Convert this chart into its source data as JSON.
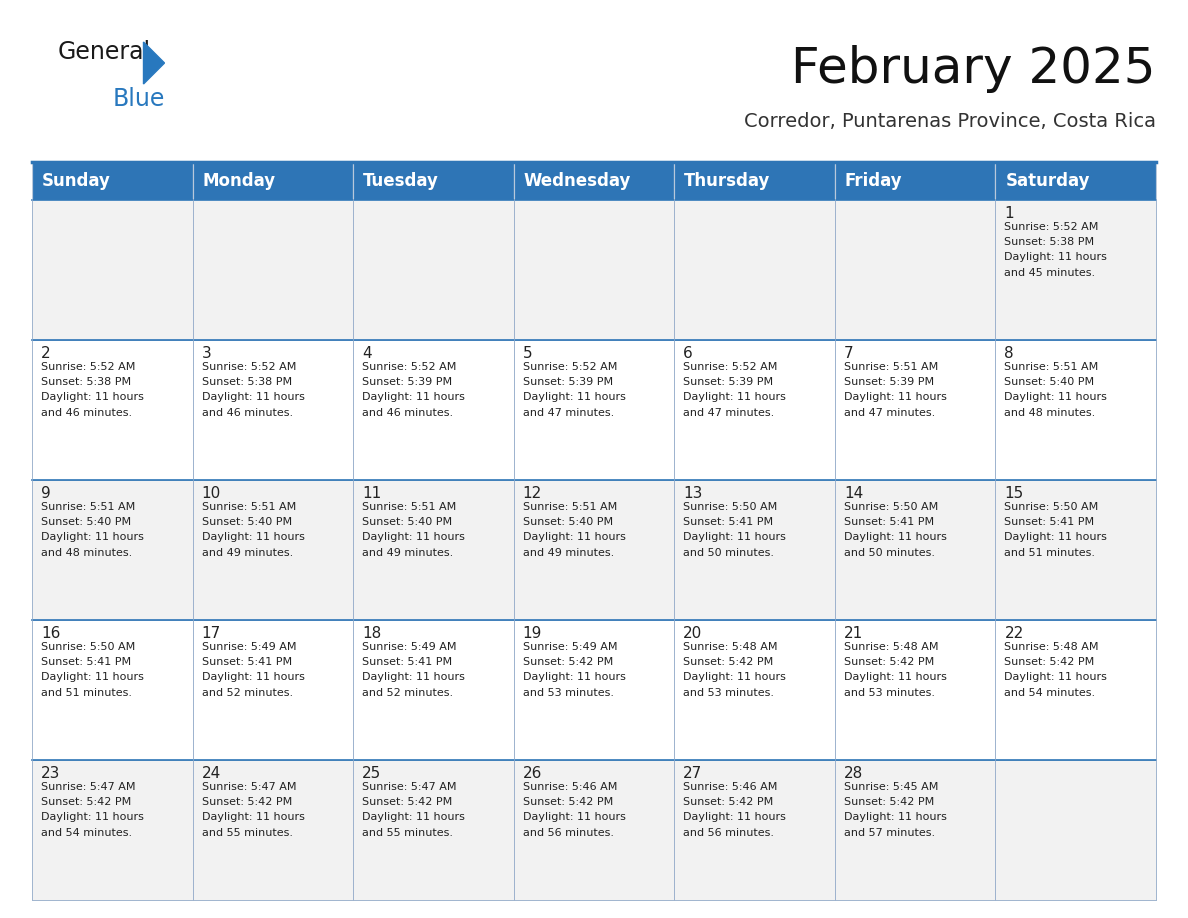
{
  "title": "February 2025",
  "subtitle": "Corredor, Puntarenas Province, Costa Rica",
  "header_color": "#2e75b6",
  "header_text_color": "#ffffff",
  "cell_bg_row0": "#f2f2f2",
  "cell_bg_row1": "#ffffff",
  "cell_bg_row2": "#f2f2f2",
  "cell_bg_row3": "#ffffff",
  "cell_bg_row4": "#f2f2f2",
  "day_names": [
    "Sunday",
    "Monday",
    "Tuesday",
    "Wednesday",
    "Thursday",
    "Friday",
    "Saturday"
  ],
  "days": [
    {
      "day": 1,
      "col": 6,
      "row": 0,
      "sunrise": "5:52 AM",
      "sunset": "5:38 PM",
      "daylight": "11 hours and 45 minutes."
    },
    {
      "day": 2,
      "col": 0,
      "row": 1,
      "sunrise": "5:52 AM",
      "sunset": "5:38 PM",
      "daylight": "11 hours and 46 minutes."
    },
    {
      "day": 3,
      "col": 1,
      "row": 1,
      "sunrise": "5:52 AM",
      "sunset": "5:38 PM",
      "daylight": "11 hours and 46 minutes."
    },
    {
      "day": 4,
      "col": 2,
      "row": 1,
      "sunrise": "5:52 AM",
      "sunset": "5:39 PM",
      "daylight": "11 hours and 46 minutes."
    },
    {
      "day": 5,
      "col": 3,
      "row": 1,
      "sunrise": "5:52 AM",
      "sunset": "5:39 PM",
      "daylight": "11 hours and 47 minutes."
    },
    {
      "day": 6,
      "col": 4,
      "row": 1,
      "sunrise": "5:52 AM",
      "sunset": "5:39 PM",
      "daylight": "11 hours and 47 minutes."
    },
    {
      "day": 7,
      "col": 5,
      "row": 1,
      "sunrise": "5:51 AM",
      "sunset": "5:39 PM",
      "daylight": "11 hours and 47 minutes."
    },
    {
      "day": 8,
      "col": 6,
      "row": 1,
      "sunrise": "5:51 AM",
      "sunset": "5:40 PM",
      "daylight": "11 hours and 48 minutes."
    },
    {
      "day": 9,
      "col": 0,
      "row": 2,
      "sunrise": "5:51 AM",
      "sunset": "5:40 PM",
      "daylight": "11 hours and 48 minutes."
    },
    {
      "day": 10,
      "col": 1,
      "row": 2,
      "sunrise": "5:51 AM",
      "sunset": "5:40 PM",
      "daylight": "11 hours and 49 minutes."
    },
    {
      "day": 11,
      "col": 2,
      "row": 2,
      "sunrise": "5:51 AM",
      "sunset": "5:40 PM",
      "daylight": "11 hours and 49 minutes."
    },
    {
      "day": 12,
      "col": 3,
      "row": 2,
      "sunrise": "5:51 AM",
      "sunset": "5:40 PM",
      "daylight": "11 hours and 49 minutes."
    },
    {
      "day": 13,
      "col": 4,
      "row": 2,
      "sunrise": "5:50 AM",
      "sunset": "5:41 PM",
      "daylight": "11 hours and 50 minutes."
    },
    {
      "day": 14,
      "col": 5,
      "row": 2,
      "sunrise": "5:50 AM",
      "sunset": "5:41 PM",
      "daylight": "11 hours and 50 minutes."
    },
    {
      "day": 15,
      "col": 6,
      "row": 2,
      "sunrise": "5:50 AM",
      "sunset": "5:41 PM",
      "daylight": "11 hours and 51 minutes."
    },
    {
      "day": 16,
      "col": 0,
      "row": 3,
      "sunrise": "5:50 AM",
      "sunset": "5:41 PM",
      "daylight": "11 hours and 51 minutes."
    },
    {
      "day": 17,
      "col": 1,
      "row": 3,
      "sunrise": "5:49 AM",
      "sunset": "5:41 PM",
      "daylight": "11 hours and 52 minutes."
    },
    {
      "day": 18,
      "col": 2,
      "row": 3,
      "sunrise": "5:49 AM",
      "sunset": "5:41 PM",
      "daylight": "11 hours and 52 minutes."
    },
    {
      "day": 19,
      "col": 3,
      "row": 3,
      "sunrise": "5:49 AM",
      "sunset": "5:42 PM",
      "daylight": "11 hours and 53 minutes."
    },
    {
      "day": 20,
      "col": 4,
      "row": 3,
      "sunrise": "5:48 AM",
      "sunset": "5:42 PM",
      "daylight": "11 hours and 53 minutes."
    },
    {
      "day": 21,
      "col": 5,
      "row": 3,
      "sunrise": "5:48 AM",
      "sunset": "5:42 PM",
      "daylight": "11 hours and 53 minutes."
    },
    {
      "day": 22,
      "col": 6,
      "row": 3,
      "sunrise": "5:48 AM",
      "sunset": "5:42 PM",
      "daylight": "11 hours and 54 minutes."
    },
    {
      "day": 23,
      "col": 0,
      "row": 4,
      "sunrise": "5:47 AM",
      "sunset": "5:42 PM",
      "daylight": "11 hours and 54 minutes."
    },
    {
      "day": 24,
      "col": 1,
      "row": 4,
      "sunrise": "5:47 AM",
      "sunset": "5:42 PM",
      "daylight": "11 hours and 55 minutes."
    },
    {
      "day": 25,
      "col": 2,
      "row": 4,
      "sunrise": "5:47 AM",
      "sunset": "5:42 PM",
      "daylight": "11 hours and 55 minutes."
    },
    {
      "day": 26,
      "col": 3,
      "row": 4,
      "sunrise": "5:46 AM",
      "sunset": "5:42 PM",
      "daylight": "11 hours and 56 minutes."
    },
    {
      "day": 27,
      "col": 4,
      "row": 4,
      "sunrise": "5:46 AM",
      "sunset": "5:42 PM",
      "daylight": "11 hours and 56 minutes."
    },
    {
      "day": 28,
      "col": 5,
      "row": 4,
      "sunrise": "5:45 AM",
      "sunset": "5:42 PM",
      "daylight": "11 hours and 57 minutes."
    }
  ],
  "num_rows": 5,
  "num_cols": 7,
  "logo_color_general": "#1a1a1a",
  "logo_color_blue": "#2878be",
  "logo_triangle_color": "#2878be",
  "title_fontsize": 36,
  "subtitle_fontsize": 14,
  "header_fontsize": 12,
  "day_number_fontsize": 11,
  "cell_text_fontsize": 8,
  "grid_line_color": "#9ab0cc",
  "text_color": "#222222",
  "separator_line_color": "#2e75b6",
  "cell_row_colors": [
    "#f2f2f2",
    "#ffffff",
    "#f2f2f2",
    "#ffffff",
    "#f2f2f2"
  ]
}
